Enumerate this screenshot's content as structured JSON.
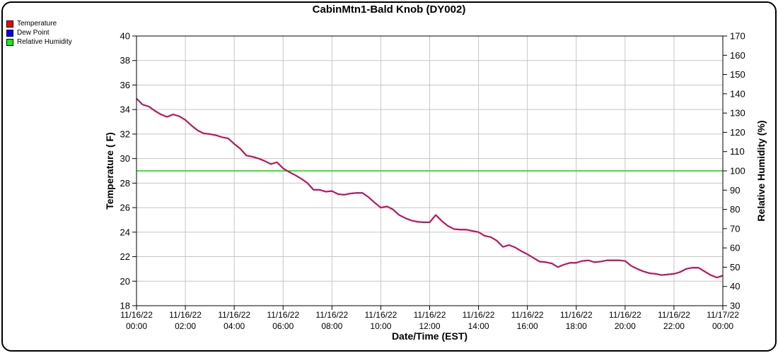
{
  "window": {
    "title": "CabinMtn1-Bald Knob (DY002)"
  },
  "legend": {
    "items": [
      {
        "label": "Temperature",
        "color": "#ff0000"
      },
      {
        "label": "Dew Point",
        "color": "#0000ff"
      },
      {
        "label": "Relative Humidity",
        "color": "#00ff00"
      }
    ]
  },
  "chart_data": {
    "type": "line",
    "title": "CabinMtn1-Bald Knob (DY002)",
    "xlabel": "Date/Time (EST)",
    "ylabel_left": "Temperature ( F)",
    "ylabel_right": "Relative Humidity (%)",
    "ylim_left": [
      18,
      40
    ],
    "ylim_right": [
      30,
      170
    ],
    "left_ticks": [
      18,
      20,
      22,
      24,
      26,
      28,
      30,
      32,
      34,
      36,
      38,
      40
    ],
    "right_ticks": [
      30,
      40,
      50,
      60,
      70,
      80,
      90,
      100,
      110,
      120,
      130,
      140,
      150,
      160,
      170
    ],
    "x_range_hours": [
      0,
      24
    ],
    "x_tick_step_hours": 2,
    "x_tick_labels": [
      {
        "date": "11/16/22",
        "time": "00:00"
      },
      {
        "date": "11/16/22",
        "time": "02:00"
      },
      {
        "date": "11/16/22",
        "time": "04:00"
      },
      {
        "date": "11/16/22",
        "time": "06:00"
      },
      {
        "date": "11/16/22",
        "time": "08:00"
      },
      {
        "date": "11/16/22",
        "time": "10:00"
      },
      {
        "date": "11/16/22",
        "time": "12:00"
      },
      {
        "date": "11/16/22",
        "time": "14:00"
      },
      {
        "date": "11/16/22",
        "time": "16:00"
      },
      {
        "date": "11/16/22",
        "time": "18:00"
      },
      {
        "date": "11/16/22",
        "time": "20:00"
      },
      {
        "date": "11/16/22",
        "time": "22:00"
      },
      {
        "date": "11/17/22",
        "time": "00:00"
      }
    ],
    "grid": true,
    "grid_color": "#c6c6c6",
    "x_start_hours": 0,
    "x_step_hours": 0.25,
    "series": [
      {
        "name": "Relative Humidity",
        "axis": "right",
        "line_color": "#00d800",
        "constant_value": 100
      },
      {
        "name": "Dew Point",
        "axis": "left",
        "line_color": "#0000ff",
        "note": "coincident with Temperature (RH = 100%), hidden beneath it",
        "values": [
          34.9,
          34.4,
          34.25,
          33.9,
          33.6,
          33.4,
          33.6,
          33.45,
          33.15,
          32.7,
          32.3,
          32.05,
          32.0,
          31.9,
          31.75,
          31.65,
          31.2,
          30.8,
          30.25,
          30.15,
          30.0,
          29.8,
          29.55,
          29.7,
          29.2,
          28.9,
          28.65,
          28.35,
          28.0,
          27.45,
          27.45,
          27.3,
          27.35,
          27.1,
          27.05,
          27.15,
          27.2,
          27.2,
          26.85,
          26.4,
          26.0,
          26.1,
          25.85,
          25.4,
          25.15,
          24.95,
          24.85,
          24.8,
          24.8,
          25.4,
          24.9,
          24.5,
          24.25,
          24.2,
          24.2,
          24.1,
          24.0,
          23.7,
          23.6,
          23.3,
          22.8,
          22.95,
          22.75,
          22.45,
          22.2,
          21.9,
          21.6,
          21.55,
          21.45,
          21.15,
          21.35,
          21.5,
          21.5,
          21.65,
          21.7,
          21.55,
          21.6,
          21.7,
          21.7,
          21.7,
          21.65,
          21.25,
          21.0,
          20.8,
          20.65,
          20.6,
          20.5,
          20.55,
          20.6,
          20.75,
          21.0,
          21.1,
          21.1,
          20.8,
          20.5,
          20.3,
          20.45
        ]
      },
      {
        "name": "Temperature",
        "axis": "left",
        "line_color": "#c9134f",
        "values": [
          34.9,
          34.4,
          34.25,
          33.9,
          33.6,
          33.4,
          33.6,
          33.45,
          33.15,
          32.7,
          32.3,
          32.05,
          32.0,
          31.9,
          31.75,
          31.65,
          31.2,
          30.8,
          30.25,
          30.15,
          30.0,
          29.8,
          29.55,
          29.7,
          29.2,
          28.9,
          28.65,
          28.35,
          28.0,
          27.45,
          27.45,
          27.3,
          27.35,
          27.1,
          27.05,
          27.15,
          27.2,
          27.2,
          26.85,
          26.4,
          26.0,
          26.1,
          25.85,
          25.4,
          25.15,
          24.95,
          24.85,
          24.8,
          24.8,
          25.4,
          24.9,
          24.5,
          24.25,
          24.2,
          24.2,
          24.1,
          24.0,
          23.7,
          23.6,
          23.3,
          22.8,
          22.95,
          22.75,
          22.45,
          22.2,
          21.9,
          21.6,
          21.55,
          21.45,
          21.15,
          21.35,
          21.5,
          21.5,
          21.65,
          21.7,
          21.55,
          21.6,
          21.7,
          21.7,
          21.7,
          21.65,
          21.25,
          21.0,
          20.8,
          20.65,
          20.6,
          20.5,
          20.55,
          20.6,
          20.75,
          21.0,
          21.1,
          21.1,
          20.8,
          20.5,
          20.3,
          20.45
        ]
      }
    ]
  }
}
